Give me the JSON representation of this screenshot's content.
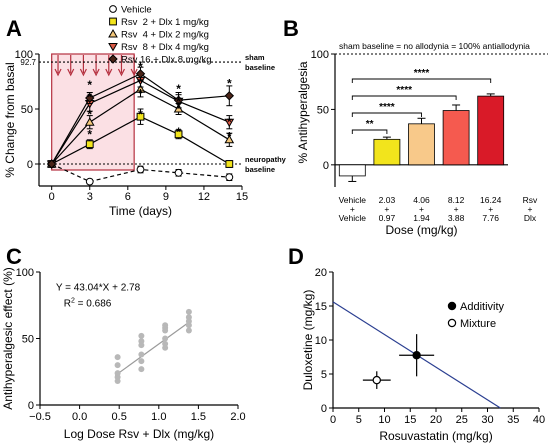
{
  "chart_data": [
    {
      "panel": "A",
      "type": "line",
      "xlabel": "Time (days)",
      "ylabel": "% Change from basal",
      "xlim": [
        -1,
        15
      ],
      "ylim": [
        -20,
        100
      ],
      "xticks": [
        0,
        3,
        6,
        9,
        12,
        15
      ],
      "yticks": [
        0,
        50,
        100
      ],
      "reference_lines": [
        {
          "y": 92.7,
          "label_value": "92.7",
          "label": "sham\nbaseline"
        },
        {
          "y": 0,
          "label": "neuropathy\nbaseline"
        }
      ],
      "dosing_days": [
        0,
        1,
        2,
        3,
        4,
        5,
        6
      ],
      "dosing_window": [
        0,
        6.5
      ],
      "x": [
        0,
        3,
        7,
        10,
        14
      ],
      "series": [
        {
          "name": "Vehicle",
          "color": "#ffffff",
          "dashed": true,
          "values": [
            0,
            -16,
            -5,
            -8,
            -12
          ],
          "errors": [
            0,
            2,
            3,
            3,
            3
          ]
        },
        {
          "name": "Rsv  2 + Dlx 1 mg/kg",
          "color": "#f2e41c",
          "values": [
            0,
            18,
            43,
            27,
            0
          ],
          "errors": [
            0,
            4,
            7,
            4,
            3
          ]
        },
        {
          "name": "Rsv  4 + Dlx 2 mg/kg",
          "color": "#f3c77a",
          "values": [
            0,
            38,
            68,
            50,
            22
          ],
          "errors": [
            0,
            6,
            7,
            5,
            6
          ]
        },
        {
          "name": "Rsv  8 + Dlx 4 mg/kg",
          "color": "#d95a45",
          "values": [
            0,
            55,
            76,
            57,
            38
          ],
          "errors": [
            0,
            7,
            6,
            6,
            6
          ]
        },
        {
          "name": "Rsv 16 + Dlx 8 mg/kg",
          "color": "#4a2418",
          "values": [
            0,
            60,
            82,
            58,
            62
          ],
          "errors": [
            0,
            5,
            6,
            7,
            9
          ]
        }
      ],
      "annotations": [
        {
          "x": 3,
          "y": 27,
          "text": "*"
        },
        {
          "x": 3,
          "y": 45,
          "text": "*"
        },
        {
          "x": 3,
          "y": 61,
          "text": "*"
        },
        {
          "x": 3,
          "y": 72,
          "text": "*"
        },
        {
          "x": 7,
          "y": 45,
          "text": "*"
        },
        {
          "x": 7,
          "y": 64,
          "text": "*"
        },
        {
          "x": 7,
          "y": 74,
          "text": "*"
        },
        {
          "x": 7,
          "y": 88,
          "text": "*"
        },
        {
          "x": 10,
          "y": 29,
          "text": "*"
        },
        {
          "x": 10,
          "y": 52,
          "text": "*"
        },
        {
          "x": 10,
          "y": 57,
          "text": "*"
        },
        {
          "x": 10,
          "y": 68,
          "text": "*"
        },
        {
          "x": 14,
          "y": 25,
          "text": "*"
        },
        {
          "x": 14,
          "y": 38,
          "text": "*"
        },
        {
          "x": 14,
          "y": 73,
          "text": "*"
        }
      ]
    },
    {
      "panel": "B",
      "type": "bar",
      "title": "sham baseline = no allodynia = 100% antiallodynia",
      "xlabel": "Dose (mg/kg)",
      "ylabel": "% Antihyperalgesia",
      "ylim": [
        -20,
        100
      ],
      "yticks": [
        0,
        50,
        100
      ],
      "reference_line": 100,
      "categories": [
        [
          "Vehicle",
          "+",
          "Vehicle"
        ],
        [
          "2.03",
          "+",
          "0.97"
        ],
        [
          "4.06",
          "+",
          "1.94"
        ],
        [
          "8.12",
          "+",
          "3.88"
        ],
        [
          "16.24",
          "+",
          "7.76"
        ]
      ],
      "category_axis_label": [
        "Rsv",
        "+",
        "Dlx"
      ],
      "values": [
        -10,
        23,
        37,
        49,
        62
      ],
      "errors": [
        5,
        2,
        5,
        5,
        2
      ],
      "colors": [
        "#ffffff",
        "#f2e41c",
        "#f8c98a",
        "#f55a4f",
        "#d91a28"
      ],
      "significance": [
        {
          "from": 0,
          "to": 1,
          "text": "**"
        },
        {
          "from": 0,
          "to": 2,
          "text": "****"
        },
        {
          "from": 0,
          "to": 3,
          "text": "****"
        },
        {
          "from": 0,
          "to": 4,
          "text": "****"
        }
      ]
    },
    {
      "panel": "C",
      "type": "scatter",
      "xlabel": "Log Dose Rsv + Dlx (mg/kg)",
      "ylabel": "Antihyperalgesic effect (%)",
      "xlim": [
        -0.5,
        2.0
      ],
      "ylim": [
        0,
        100
      ],
      "xticks": [
        -0.5,
        0.0,
        0.5,
        1.0,
        1.5,
        2.0
      ],
      "yticks": [
        0,
        50,
        100
      ],
      "equation": "Y = 43.04*X + 2.78",
      "r_squared": "R",
      "r_squared_sup": "2",
      "r_squared_value": " = 0.686",
      "fit": {
        "slope": 43.04,
        "intercept": 2.78,
        "x_range": [
          0.45,
          1.4
        ]
      },
      "points": {
        "x": [
          0.48,
          0.48,
          0.48,
          0.48,
          0.48,
          0.78,
          0.78,
          0.78,
          0.78,
          0.78,
          0.78,
          1.08,
          1.08,
          1.08,
          1.08,
          1.08,
          1.08,
          1.38,
          1.38,
          1.38,
          1.38,
          1.38
        ],
        "y": [
          18,
          21,
          24,
          30,
          36,
          27,
          33,
          38,
          45,
          48,
          52,
          43,
          46,
          50,
          56,
          58,
          60,
          56,
          60,
          63,
          66,
          70
        ]
      }
    },
    {
      "panel": "D",
      "type": "scatter",
      "xlabel": "Rosuvastatin (mg/kg)",
      "ylabel": "Duloxetine (mg/kg)",
      "xlim": [
        0,
        40
      ],
      "ylim": [
        0,
        20
      ],
      "xticks": [
        0,
        5,
        10,
        15,
        20,
        25,
        30,
        35,
        40
      ],
      "yticks": [
        0,
        5,
        10,
        15,
        20
      ],
      "isobole": {
        "x": [
          0,
          32.5
        ],
        "y": [
          15.6,
          0
        ],
        "color": "#2b3f91"
      },
      "points": [
        {
          "name": "Additivity",
          "x": 16.24,
          "y": 7.76,
          "xerr": 3.4,
          "yerr": 3.1,
          "fill": "#000000"
        },
        {
          "name": "Mixture",
          "x": 8.5,
          "y": 4.1,
          "xerr": 2.7,
          "yerr": 1.3,
          "fill": "#ffffff"
        }
      ]
    }
  ]
}
